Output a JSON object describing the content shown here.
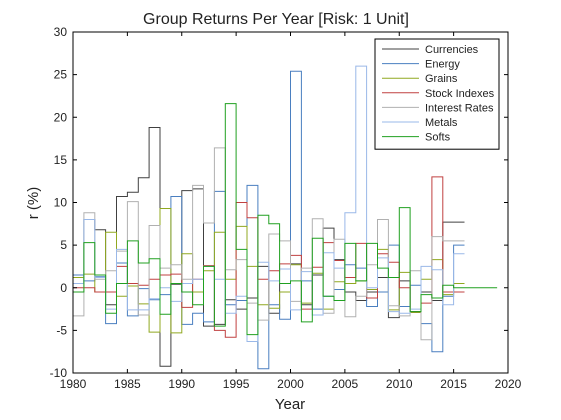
{
  "chart_data": {
    "type": "line",
    "title": "Group Returns Per Year [Risk: 1 Unit]",
    "xlabel": "Year",
    "ylabel": "r (%)",
    "xlim": [
      1980,
      2020
    ],
    "ylim": [
      -10,
      30
    ],
    "xticks": [
      1980,
      1985,
      1990,
      1995,
      2000,
      2005,
      2010,
      2015,
      2020
    ],
    "yticks": [
      -10,
      -5,
      0,
      5,
      10,
      15,
      20,
      25,
      30
    ],
    "step": "post",
    "grid": false,
    "legend_position": "top-right",
    "x": [
      1980,
      1981,
      1982,
      1983,
      1984,
      1985,
      1986,
      1987,
      1988,
      1989,
      1990,
      1991,
      1992,
      1993,
      1994,
      1995,
      1996,
      1997,
      1998,
      1999,
      2000,
      2001,
      2002,
      2003,
      2004,
      2005,
      2006,
      2007,
      2008,
      2009,
      2010,
      2011,
      2012,
      2013,
      2014,
      2015
    ],
    "series": [
      {
        "name": "Currencies",
        "color": "#404040",
        "values": [
          0.5,
          8.0,
          6.8,
          -2.0,
          10.7,
          11.2,
          12.9,
          18.8,
          -9.2,
          0.4,
          11.4,
          11.6,
          -4.5,
          -4.3,
          -1.4,
          -2.5,
          -1.2,
          2.5,
          -3.0,
          0.5,
          2.8,
          -2.0,
          1.5,
          7.0,
          3.3,
          -0.5,
          -1.5,
          -0.5,
          1.2,
          -3.5,
          0.8,
          -2.8,
          -0.5,
          -1.5,
          7.7,
          7.7
        ]
      },
      {
        "name": "Energy",
        "color": "#4a7fc0",
        "values": [
          1.5,
          0.8,
          1.3,
          -4.2,
          2.9,
          -3.3,
          -0.1,
          -1.4,
          -0.8,
          10.7,
          -4.3,
          -3.0,
          -4.0,
          11.3,
          -2.0,
          -1.5,
          12.0,
          -9.5,
          -2.0,
          -3.7,
          25.4,
          0.8,
          -2.5,
          -1.0,
          -0.2,
          2.7,
          2.3,
          -2.2,
          -0.5,
          5.0,
          -2.2,
          0.3,
          -4.2,
          -7.5,
          -1.0,
          5.0
        ]
      },
      {
        "name": "Grains",
        "color": "#90a820",
        "values": [
          1.2,
          1.6,
          -0.5,
          6.5,
          -1.0,
          0.2,
          -1.9,
          -5.2,
          9.3,
          -5.3,
          4.0,
          -0.5,
          2.0,
          6.5,
          1.0,
          7.2,
          2.5,
          -2.0,
          -2.4,
          -0.5,
          2.7,
          -1.8,
          1.7,
          -2.5,
          0.7,
          0.5,
          0.8,
          -0.2,
          4.5,
          -2.6,
          1.8,
          -2.9,
          1.0,
          3.3,
          -0.8,
          0.5
        ]
      },
      {
        "name": "Stock Indexes",
        "color": "#c04040",
        "values": [
          0.0,
          0.0,
          -0.5,
          -0.5,
          2.5,
          0.5,
          0.3,
          1.0,
          1.5,
          1.6,
          -2.3,
          1.0,
          2.6,
          -5.0,
          -5.8,
          10.0,
          8.2,
          1.0,
          2.0,
          2.8,
          3.8,
          -2.5,
          2.4,
          5.3,
          3.2,
          1.2,
          5.2,
          -1.2,
          4.0,
          3.0,
          0.0,
          -2.8,
          -1.8,
          13.0,
          -0.5,
          -0.5
        ]
      },
      {
        "name": "Interest Rates",
        "color": "#b0b0b0",
        "values": [
          -3.3,
          8.8,
          1.0,
          2.0,
          4.3,
          10.1,
          -3.2,
          7.3,
          2.3,
          2.7,
          1.0,
          12.0,
          7.6,
          16.4,
          2.1,
          3.3,
          -1.8,
          -3.8,
          6.3,
          5.5,
          -1.6,
          2.3,
          8.1,
          -3.0,
          5.7,
          -3.4,
          -1.0,
          2.7,
          8.0,
          -2.1,
          -3.3,
          2.0,
          -6.1,
          6.0,
          5.5,
          5.5
        ]
      },
      {
        "name": "Metals",
        "color": "#9ab8e8",
        "values": [
          0.5,
          8.0,
          1.2,
          -2.5,
          4.5,
          -2.6,
          -2.6,
          -1.3,
          0.0,
          -1.6,
          0.5,
          1.0,
          2.5,
          1.0,
          -3.0,
          -1.0,
          -6.3,
          3.0,
          0.8,
          2.2,
          -2.6,
          1.9,
          -3.2,
          4.1,
          2.3,
          8.8,
          26.0,
          0.0,
          3.5,
          -2.8,
          -3.0,
          -2.5,
          2.5,
          2.1,
          -2.0,
          4.0
        ]
      },
      {
        "name": "Softs",
        "color": "#20a020",
        "values": [
          -0.5,
          5.3,
          1.5,
          -3.0,
          0.5,
          5.5,
          2.9,
          3.4,
          -3.1,
          0.5,
          -0.5,
          -2.0,
          2.5,
          -4.5,
          21.6,
          4.5,
          -5.5,
          8.5,
          7.5,
          0.5,
          0.8,
          -4.0,
          5.8,
          -1.0,
          -1.5,
          5.2,
          0.8,
          5.2,
          2.3,
          1.2,
          9.4,
          -2.8,
          -0.8,
          -1.2,
          0.3,
          0.0
        ]
      }
    ]
  }
}
